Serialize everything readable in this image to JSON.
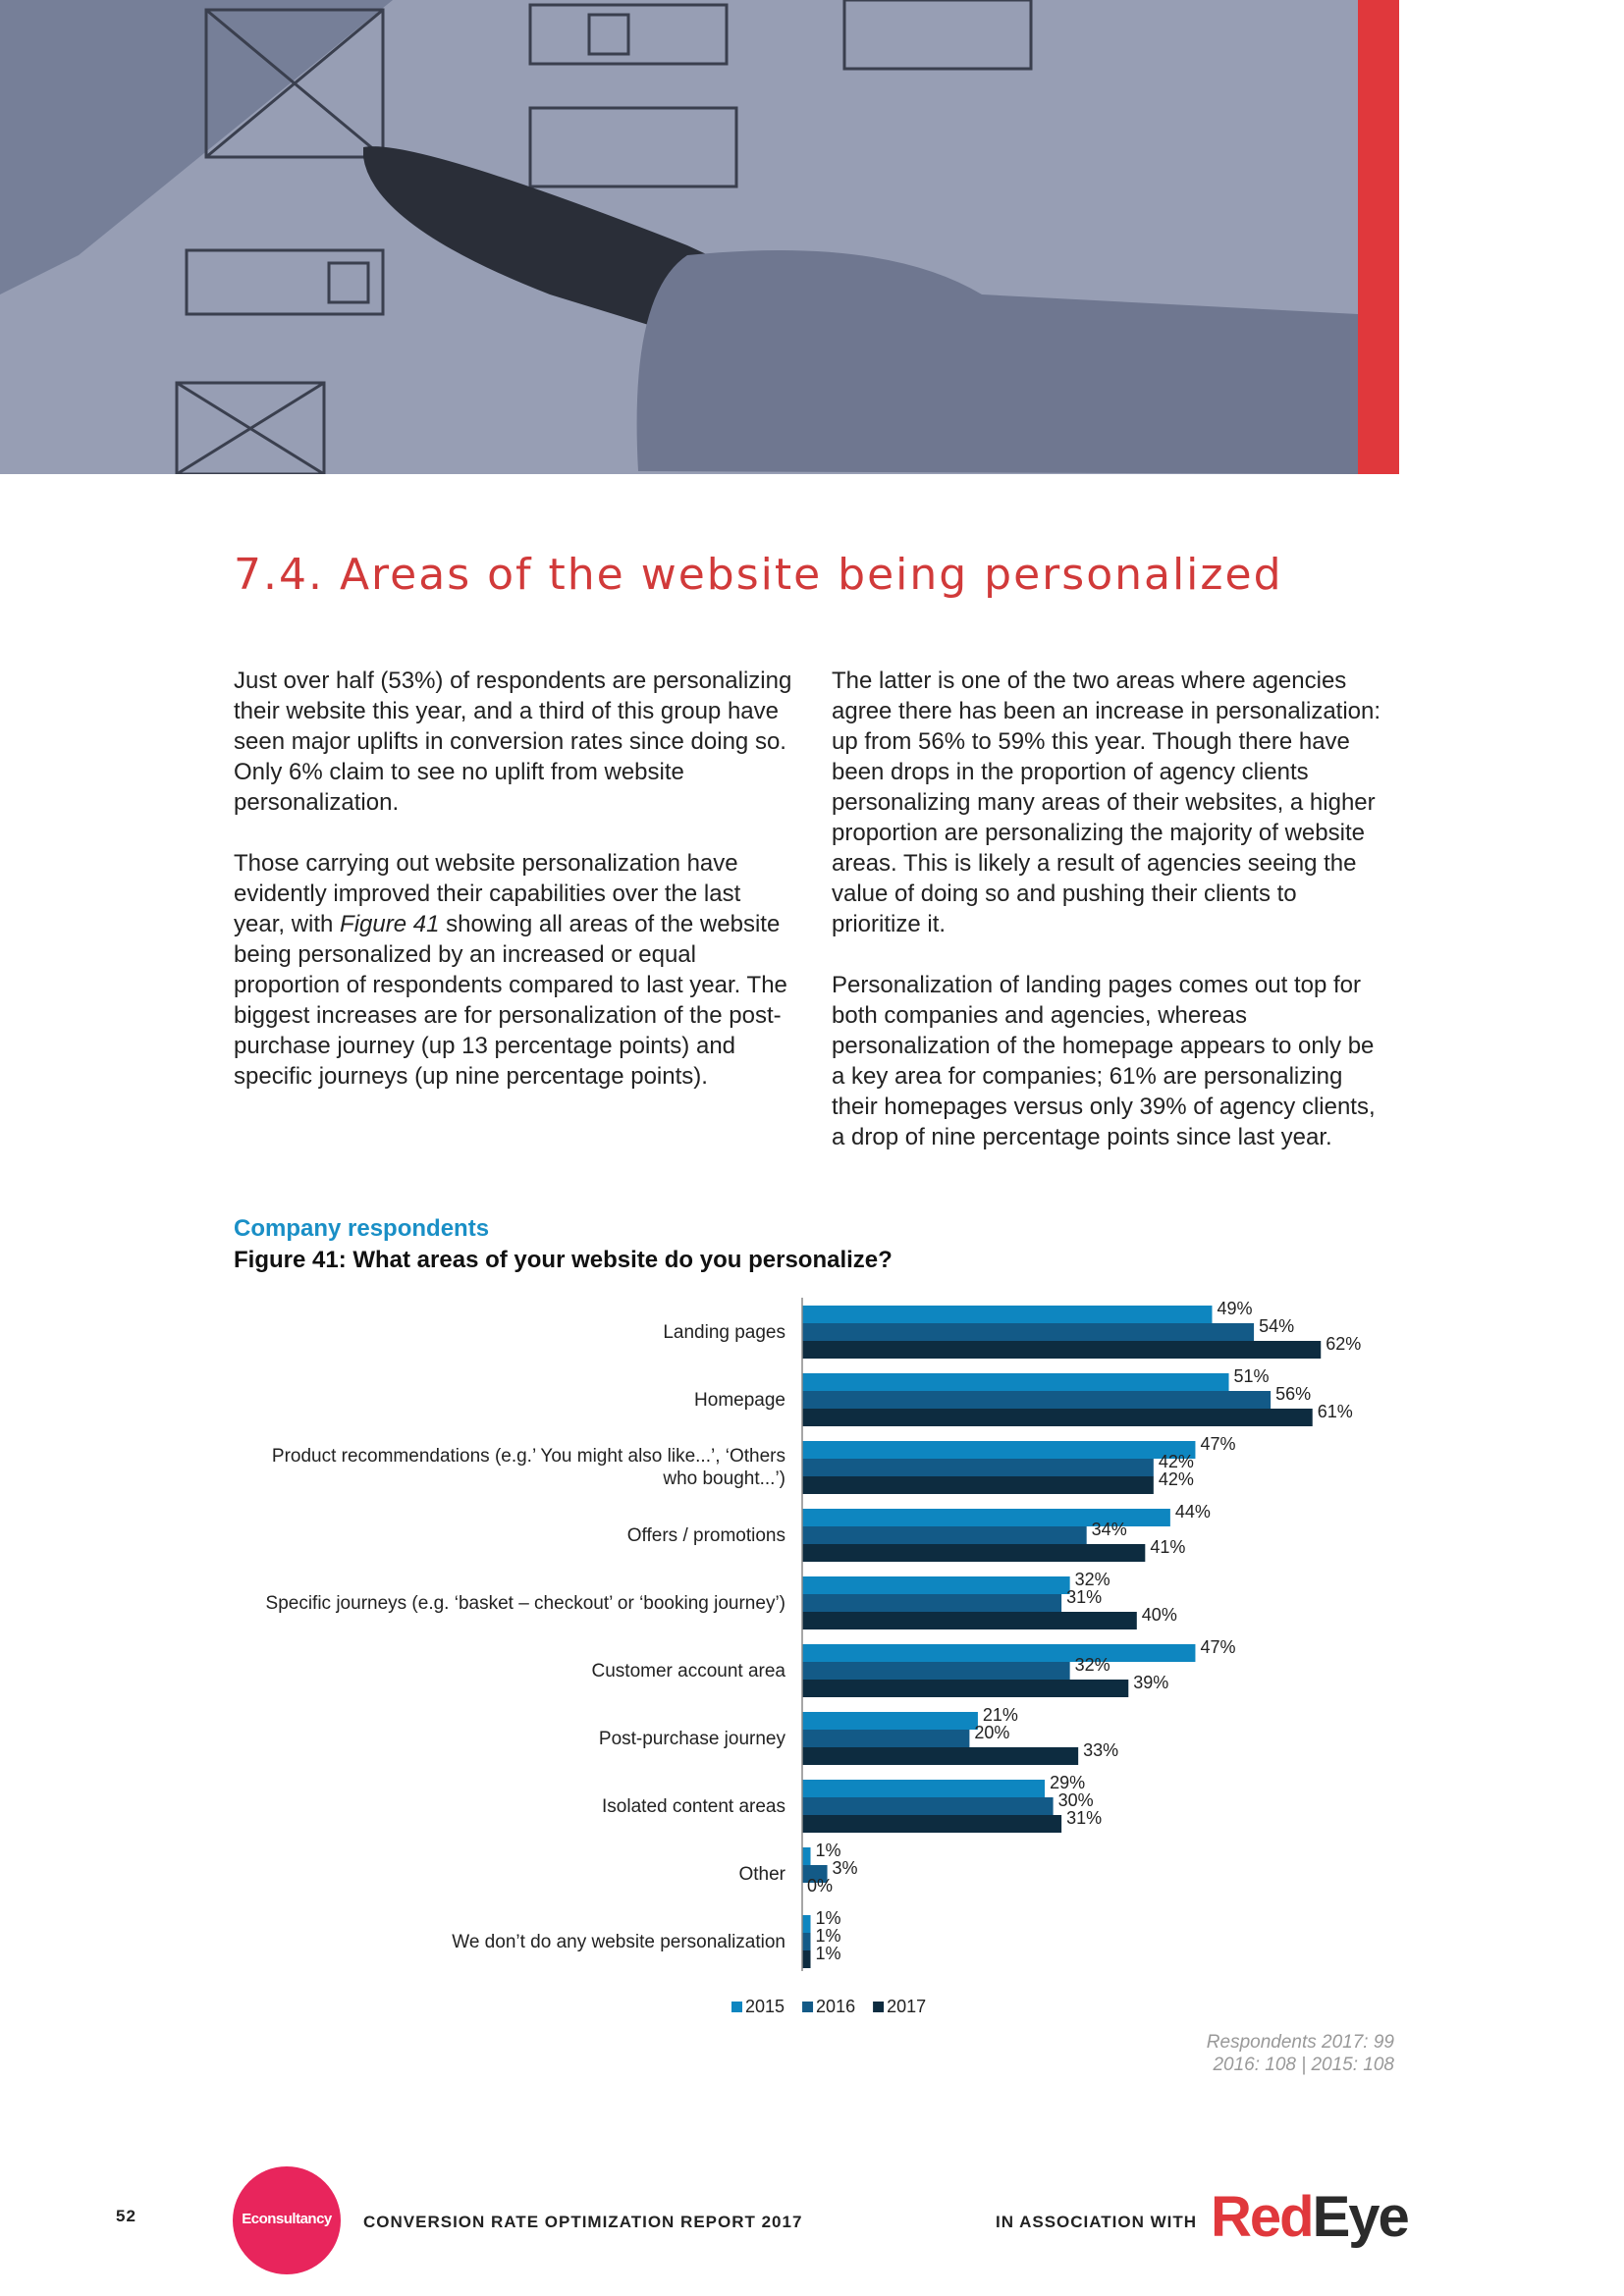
{
  "section_title": "7.4. Areas of the website being personalized",
  "left_column": [
    [
      "Just over half (53%) of respondents are personalizing their website this year, and a third of this group have seen major uplifts in conversion rates since doing so. Only 6% claim to see no uplift from website personalization."
    ],
    [
      "Those carrying out website personalization have evidently improved their capabilities over the last year, with ",
      "Figure 41",
      " showing all areas of the website being personalized by an increased or equal proportion of respondents compared to last year. The biggest increases are for personalization of the post-purchase journey (up 13 percentage points) and specific journeys (up nine percentage points)."
    ]
  ],
  "right_column": [
    [
      "The latter is one of the two areas where agencies agree there has been an increase in personalization: up from 56% to 59% this year. Though there have been drops in the proportion of agency clients personalizing many areas of their websites, a higher proportion are personalizing the majority of website areas. This is likely a result of agencies seeing the value of doing so and pushing their clients to prioritize it."
    ],
    [
      "Personalization of landing pages comes out top for both companies and agencies, whereas personalization of the homepage appears to only be a key area for companies; 61% are personalizing their homepages versus only 39% of agency clients, a drop of nine percentage points since last year."
    ]
  ],
  "chart_data": {
    "type": "hbar",
    "subtitle": "Company respondents",
    "title": "Figure 41: What areas of your website do you personalize?",
    "categories": [
      "Landing pages",
      "Homepage",
      "Product recommendations (e.g.’ You might also like...’, ‘Others who bought...’)",
      "Offers / promotions",
      "Specific journeys (e.g. ‘basket – checkout’ or ‘booking journey’)",
      "Customer account area",
      "Post-purchase journey",
      "Isolated content areas",
      "Other",
      "We don’t do any website personalization"
    ],
    "series": [
      {
        "name": "2015",
        "color": "#0e86c0",
        "values": [
          49,
          51,
          47,
          44,
          32,
          47,
          21,
          29,
          1,
          1
        ],
        "value_labels": [
          "49%",
          "51%",
          "47%",
          "44%",
          "32%",
          "47%",
          "21%",
          "29%",
          "1%",
          "1%"
        ]
      },
      {
        "name": "2016",
        "color": "#135a87",
        "values": [
          54,
          56,
          42,
          34,
          31,
          32,
          20,
          30,
          3,
          1
        ],
        "value_labels": [
          "54%",
          "56%",
          "42%",
          "34%",
          "31%",
          "32%",
          "20%",
          "30%",
          "3%",
          "1%"
        ]
      },
      {
        "name": "2017",
        "color": "#0d2c40",
        "values": [
          62,
          61,
          42,
          41,
          40,
          39,
          33,
          31,
          0,
          1
        ],
        "value_labels": [
          "62%",
          "61%",
          "42%",
          "41%",
          "40%",
          "39%",
          "33%",
          "31%",
          "0%",
          "1%"
        ]
      }
    ],
    "legend": "bottom",
    "notes": [
      "Respondents 2017: 99",
      "2016: 108 | 2015: 108"
    ]
  },
  "footer": {
    "page_number": "52",
    "logo": "Econsultancy",
    "report": "CONVERSION RATE OPTIMIZATION REPORT 2017",
    "association": "IN ASSOCIATION WITH",
    "partner": [
      "Red",
      "Eye"
    ]
  }
}
